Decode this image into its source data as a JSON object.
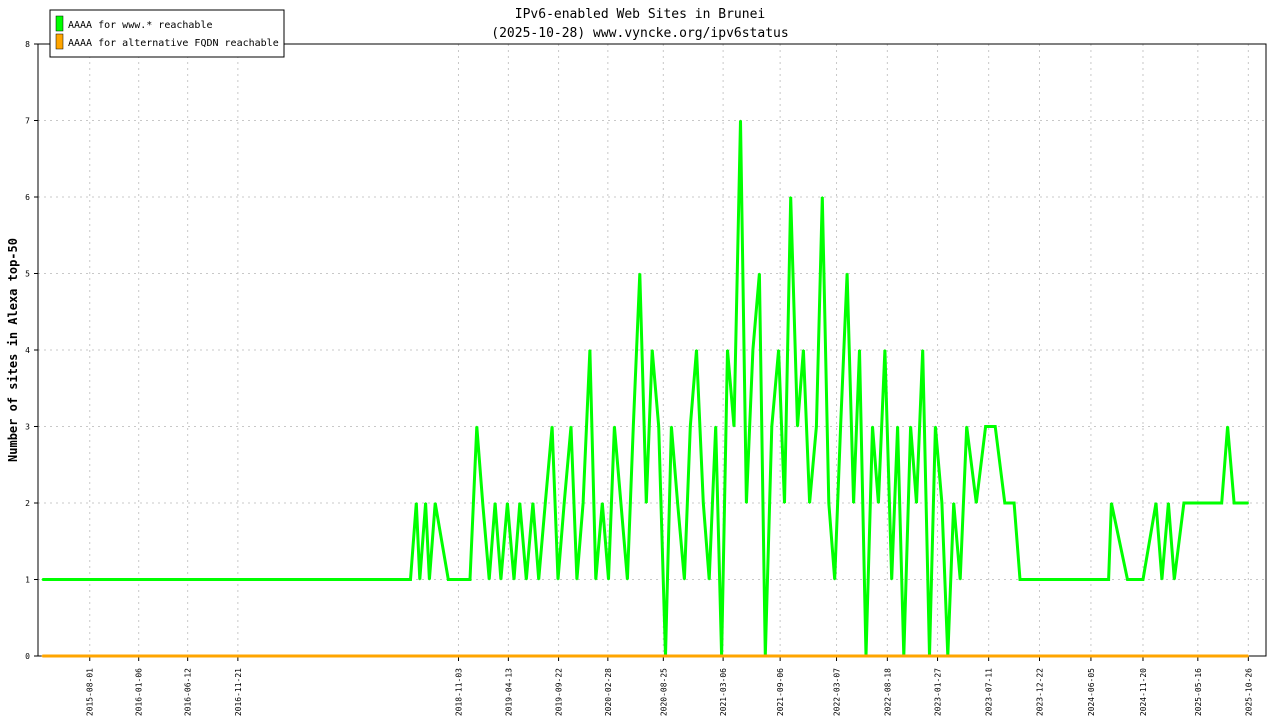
{
  "chart_data": {
    "type": "line",
    "title": "IPv6-enabled Web Sites in Brunei",
    "subtitle": "(2025-10-28) www.vyncke.org/ipv6status",
    "xlabel": "",
    "ylabel": "Number of sites in Alexa top-50",
    "ylim": [
      0,
      8
    ],
    "yticks": [
      "0",
      "1",
      "2",
      "3",
      "4",
      "5",
      "6",
      "7",
      "8"
    ],
    "xlim": [
      "2015-02-15",
      "2025-12-22"
    ],
    "xticks": [
      "2015-08-01",
      "2016-01-06",
      "2016-06-12",
      "2016-11-21",
      "2018-11-03",
      "2019-04-13",
      "2019-09-22",
      "2020-02-28",
      "2020-08-25",
      "2021-03-06",
      "2021-09-06",
      "2022-03-07",
      "2022-08-18",
      "2023-01-27",
      "2023-07-11",
      "2023-12-22",
      "2024-06-05",
      "2024-11-20",
      "2025-05-16",
      "2025-10-26"
    ],
    "grid": true,
    "legend_position": "top-left",
    "series": [
      {
        "name": "AAAA for www.* reachable",
        "color": "#00ff00",
        "x": [
          "2015-03-01",
          "2018-06-01",
          "2018-06-20",
          "2018-07-01",
          "2018-07-20",
          "2018-08-01",
          "2018-08-20",
          "2018-10-01",
          "2018-11-20",
          "2018-12-10",
          "2019-01-01",
          "2019-01-20",
          "2019-02-10",
          "2019-03-01",
          "2019-03-20",
          "2019-04-10",
          "2019-05-01",
          "2019-05-20",
          "2019-06-10",
          "2019-07-01",
          "2019-07-20",
          "2019-08-10",
          "2019-09-01",
          "2019-09-20",
          "2019-10-10",
          "2019-11-01",
          "2019-11-20",
          "2019-12-10",
          "2020-01-01",
          "2020-01-20",
          "2020-02-10",
          "2020-03-01",
          "2020-03-20",
          "2020-04-10",
          "2020-05-01",
          "2020-05-20",
          "2020-06-10",
          "2020-07-01",
          "2020-07-20",
          "2020-08-10",
          "2020-09-01",
          "2020-09-20",
          "2020-10-10",
          "2020-11-01",
          "2020-11-20",
          "2020-12-10",
          "2021-01-01",
          "2021-01-20",
          "2021-02-10",
          "2021-03-01",
          "2021-03-20",
          "2021-04-10",
          "2021-05-01",
          "2021-05-20",
          "2021-06-10",
          "2021-07-01",
          "2021-07-20",
          "2021-08-10",
          "2021-09-01",
          "2021-09-20",
          "2021-10-10",
          "2021-11-01",
          "2021-11-20",
          "2021-12-10",
          "2022-01-01",
          "2022-01-20",
          "2022-02-10",
          "2022-03-01",
          "2022-03-20",
          "2022-04-10",
          "2022-05-01",
          "2022-05-20",
          "2022-06-10",
          "2022-07-01",
          "2022-07-20",
          "2022-08-10",
          "2022-09-01",
          "2022-09-20",
          "2022-10-10",
          "2022-11-01",
          "2022-11-20",
          "2022-12-10",
          "2023-01-01",
          "2023-01-20",
          "2023-02-10",
          "2023-03-01",
          "2023-03-20",
          "2023-04-10",
          "2023-05-01",
          "2023-06-01",
          "2023-07-01",
          "2023-08-01",
          "2023-09-01",
          "2023-10-01",
          "2023-10-20",
          "2024-01-01",
          "2024-03-01",
          "2024-06-01",
          "2024-08-01",
          "2024-08-10",
          "2024-10-01",
          "2024-11-20",
          "2025-01-01",
          "2025-01-20",
          "2025-02-10",
          "2025-03-01",
          "2025-04-01",
          "2025-05-01",
          "2025-06-01",
          "2025-07-01",
          "2025-08-01",
          "2025-08-20",
          "2025-09-10",
          "2025-10-26"
        ],
        "values": [
          1,
          1,
          2,
          1,
          2,
          1,
          2,
          1,
          1,
          1,
          3,
          2,
          1,
          2,
          1,
          2,
          1,
          2,
          1,
          2,
          1,
          2,
          3,
          1,
          2,
          3,
          1,
          2,
          4,
          1,
          2,
          1,
          3,
          2,
          1,
          3,
          5,
          2,
          4,
          3,
          0,
          3,
          2,
          1,
          3,
          4,
          2,
          1,
          3,
          0,
          4,
          3,
          7,
          2,
          4,
          5,
          0,
          3,
          4,
          2,
          6,
          3,
          4,
          2,
          3,
          6,
          2,
          1,
          3,
          5,
          2,
          4,
          0,
          3,
          2,
          4,
          1,
          3,
          0,
          3,
          2,
          4,
          0,
          3,
          2,
          0,
          2,
          1,
          3,
          2,
          3,
          3,
          2,
          2,
          1,
          1,
          1,
          1,
          1,
          2,
          1,
          1,
          2,
          1,
          2,
          1,
          2,
          2,
          2,
          2,
          2,
          3,
          2,
          2
        ],
        "line_width": 3
      },
      {
        "name": "AAAA for alternative FQDN reachable",
        "color": "#ffa500",
        "x": [
          "2015-03-01",
          "2025-10-26"
        ],
        "values": [
          0,
          0
        ],
        "line_width": 3
      }
    ]
  }
}
